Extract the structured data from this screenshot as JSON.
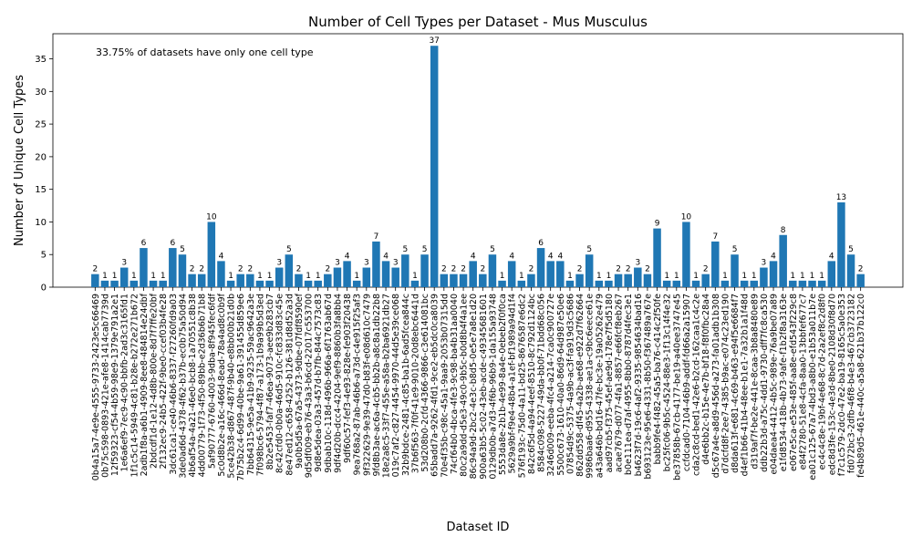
{
  "chart_data": {
    "type": "bar",
    "title": "Number of Cell Types per Dataset - Mus Musculus",
    "x_label": "Dataset ID",
    "y_label": "Number of Unique Cell Types",
    "annotation": "33.75% of datasets have only one cell type",
    "annotation_color": "#ff0000",
    "color": "#1f77b4",
    "categories": [
      "0b4a15a7-4e9e-4555-9733-2423e5c66469",
      "0b75c598-0893-421e-afe8-1414cab7739d",
      "12f59323-cf54-4b59-98e9-1379e791a2e1",
      "1e6a6ef9-7ec9-4c90-bbfb-2ad3c3165fd1",
      "1f1c5c14-5949-4c81-b28e-b272e271b672",
      "2adb1f8a-a6b1-4909-8ee8-484814e24dbf",
      "2bdcdf1d-1e12-4d8b-800e-8d7f7ffe20bf",
      "2f132ec9-24b5-422f-9be0-ccef03b4fe28",
      "3dc61ca1-ce40-46b6-8337-f27260fd9a03",
      "3de0ad6d-4378-4f62-b37b-ec0b75a50d94",
      "4b6af54a-4a21-46e0-bcb8-1a70551c8b38",
      "4dd00779-1f73-4f50-89bb-e2d36b6b71b8",
      "5af90777-6760-4003-9dba-8f945fec6fdf",
      "5c0d8b2e-a16c-466d-8ead-78a4ad8c0b9f",
      "5ce42b38-d867-487f-9b40-e8bb00b21d0b",
      "7b75b2c4-6d99-40be-9a61-391455d859e6",
      "7bb64315-9e5a-41b9-9235-59ac9642a3e",
      "7f098bc6-5794-4f87-a173-1b9a99b5d3ed",
      "8b2e5453-faf7-46ea-9073-aee9b283cb7",
      "8c42cfd0-0b0a-46d5-910c-fc833d83c45e",
      "8e47ed12-c658-4252-b126-381d8d52a3d",
      "9a0b5d5a-67a5-4373-9dbe-07fdf8590ef",
      "9d5df009-eb76-43a3-b6cd-22017c553700",
      "9d8e5dea-03a3-457d-b7fb-844c7573c83",
      "9dbab10c-118d-496b-966a-6f1763ab67d",
      "9df4d20b-dcc4-4204-9ef9-8860b3fa8bb4",
      "9df60c57-fef3-4e93-828e-fe903f20438",
      "9ea768a2-87ab-46b6-a73d-c4e915f25af3",
      "9f322629-9e39-47d0-b83f-e08d610c7479",
      "9fd8b3ae-ac6a-4cb5-bb2b-a8c8a1db22b8",
      "18e2a8c5-33f7-455e-a58a-b2ba6921db27",
      "019c7af2-c827-4454-9970-44d5e39ce068",
      "32b9bdce-2481-4c85-ba1b-6ad5fcea844c",
      "37b6f563-7f0f-41e9-9010-20d8ebc6441d",
      "53d208b0-2cfd-4366-9866-c3e614081bc",
      "65badd7a-9262-4fd1-9ce2-eb5dc0ca8039",
      "70e4f35b-c98c-45a1-9aa9-2053b07315dd",
      "74cf64b0-4bca-4fe3-9c98-ba4b31aa0040",
      "80c2a9dd-d5e3-49c0-9b5c-b0d8b4f4a1ee",
      "86c94a9d-2bc2-4e3c-b8d5-0e5e7a8e1d20",
      "900a63b5-5c02-43eb-acde-c49345681601",
      "0129db0b-a7d3-4f6b-96b9-1da155a93748",
      "5553da8e-2b1b-4e99-8a4e-0ebeb2f0f0ca",
      "5629a9bf-f9e4-48b4-a1ef-bf1989a94d1f4",
      "576f193c-75d0-4a11-bd25-8676587e6dc2",
      "842c6f5d-4a94-4eef-8510-8c792d1124bc",
      "8584c098-5227-49da-bb0f-71bdd68c056",
      "3246d009-eeba-4fc4-a214-7ca0c900727e",
      "5500c673-1610-40a0-86d9-64d987e50e6",
      "07854d9c-5375-4a9b-ac3f-fa919d3c5686",
      "862dd558-df45-4a2b-ae68-e922d7f62664",
      "9986baa6-d955-4338-ae1a-c9bc6eece61e",
      "a43a646b-bd16-47fe-bc3e-19a05262e479",
      "aad97cb5-f375-45ef-ae9d-178e7f5d5180",
      "acae7679-d077-4fa1-8857-e66fcf8eb267",
      "b0e111ea-d7af-4955-8bb0-8787d4fec3e1",
      "b4623f7d-19c6-4af2-9335-9854634bad16",
      "b693123e-95e6-4331-8b50-f367489a767e",
      "babb9fe4-f482-45a5-ba76-c414c2f50fe",
      "bc25fc06-9b5c-4524-88e3-1f13c14f4e32",
      "be37858b-67cb-4177-be19-a40ee3747e45",
      "ccfdcad0-7104-46b9-addf-fd66a2a15907",
      "cda2c8cd-bed1-42e6-b2cd-162caa1c4c2e",
      "d4e6bb2c-b15e-4e7b-bf18-f8f0fbc28a4",
      "d5c67a4e-a8d9-456d-a273-fa01adb1b308",
      "d7dcfd8f-2ee7-4385-b9ac-e074c23ed190",
      "d8da613f-e681-4c69-b463-e94f5e6684f7",
      "d4ef1b66-41b4-48ee-b1e1-7a32b1a1f48d",
      "d319af7f-be2e-441e-8caa-3b8a8480e89",
      "ddb22b3d-a75c-4dd1-9730-dff7fc8ca530",
      "e04daea4-4412-4b5c-989e-76a9be07a89",
      "e1fd8534-418b-4b73-9afe-f1b2f8a3163e",
      "e067e5ca-e53e-485f-aa8e-efd543f229c8",
      "e84f2780-51e8-4cfa-8aa0-13bbfef677c7",
      "ea01c125-67a7-4bd3-a8b0-e1b53a011b7e",
      "ec4c4c8e-19bf-4e68-8c7d-2a2ef8c2d8f0",
      "edc8d3fe-153c-4e3d-8be0-2108d30f8d70",
      "f7c1c579-2dc0-47e2-ba19-8165c5a0e353",
      "fd072bc3-2dfb-46f8-b4e3-467cb3723182",
      "fe4b89d5-461e-440c-a5a8-621b37b122c0"
    ],
    "values": [
      2,
      1,
      1,
      3,
      1,
      6,
      1,
      1,
      6,
      5,
      2,
      2,
      10,
      4,
      1,
      2,
      2,
      1,
      1,
      3,
      5,
      2,
      1,
      1,
      2,
      3,
      4,
      1,
      3,
      7,
      4,
      3,
      5,
      1,
      5,
      37,
      2,
      2,
      2,
      4,
      2,
      5,
      1,
      4,
      1,
      2,
      6,
      4,
      4,
      1,
      2,
      5,
      1,
      1,
      2,
      2,
      3,
      2,
      9,
      1,
      1,
      10,
      1,
      2,
      7,
      1,
      5,
      1,
      1,
      3,
      4,
      8,
      1,
      1,
      1,
      1,
      4,
      13,
      5,
      2
    ],
    "ylim": [
      0,
      38.85
    ],
    "yticks": [
      0,
      5,
      10,
      15,
      20,
      25,
      30,
      35
    ],
    "grid": false
  }
}
